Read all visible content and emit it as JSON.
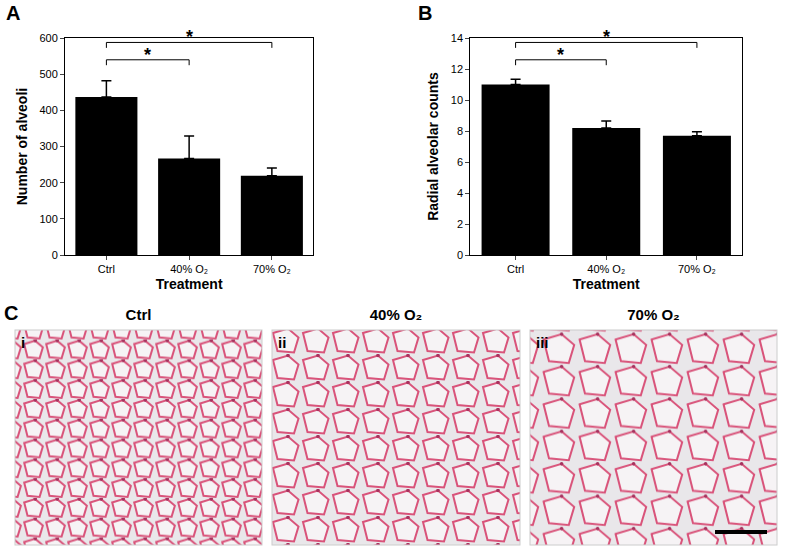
{
  "chart_data": [
    {
      "type": "bar",
      "panel_label": "A",
      "categories": [
        "Ctrl",
        "40% O₂",
        "70% O₂"
      ],
      "values": [
        437,
        267,
        219
      ],
      "errors": [
        45,
        62,
        22
      ],
      "color": "#000000",
      "xlabel": "Treatment",
      "ylabel": "Number of alveoli",
      "ylim": [
        0,
        600
      ],
      "yticks": [
        0,
        100,
        200,
        300,
        400,
        500,
        600
      ],
      "grid": false,
      "comparisons": [
        {
          "from": "Ctrl",
          "to": "40% O₂",
          "label": "*"
        },
        {
          "from": "Ctrl",
          "to": "70% O₂",
          "label": "*"
        }
      ]
    },
    {
      "type": "bar",
      "panel_label": "B",
      "categories": [
        "Ctrl",
        "40% O₂",
        "70% O₂"
      ],
      "values": [
        11.0,
        8.2,
        7.7
      ],
      "errors": [
        0.35,
        0.45,
        0.25
      ],
      "color": "#000000",
      "xlabel": "Treatment",
      "ylabel": "Radial alveolar counts",
      "ylim": [
        0,
        14
      ],
      "yticks": [
        0,
        2,
        4,
        6,
        8,
        10,
        12,
        14
      ],
      "grid": false,
      "comparisons": [
        {
          "from": "Ctrl",
          "to": "40% O₂",
          "label": "*"
        },
        {
          "from": "Ctrl",
          "to": "70% O₂",
          "label": "*"
        }
      ]
    }
  ],
  "micrographs": {
    "panel_label": "C",
    "images": [
      {
        "label": "i",
        "title": "Ctrl"
      },
      {
        "label": "ii",
        "title": "40% O₂"
      },
      {
        "label": "iii",
        "title": "70% O₂"
      }
    ]
  }
}
